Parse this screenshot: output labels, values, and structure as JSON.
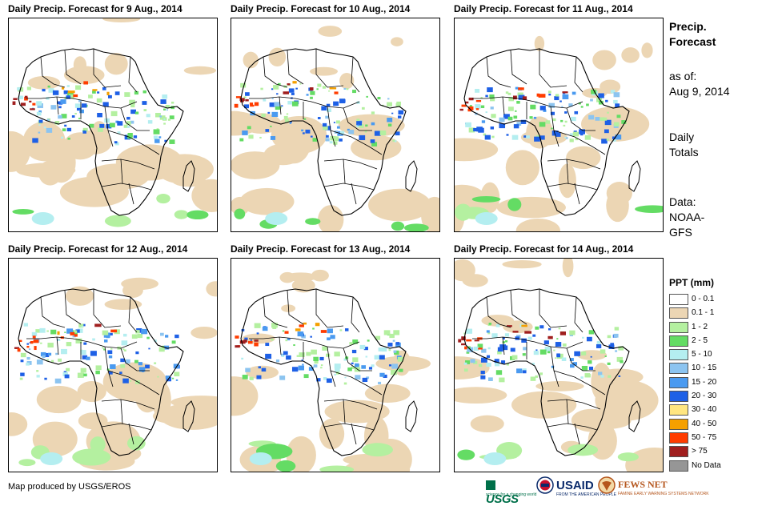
{
  "panels": [
    {
      "title": "Daily Precip. Forecast for 9 Aug., 2014"
    },
    {
      "title": "Daily Precip. Forecast for 10 Aug., 2014"
    },
    {
      "title": "Daily Precip. Forecast for 11 Aug., 2014"
    },
    {
      "title": "Daily Precip. Forecast for 12 Aug., 2014"
    },
    {
      "title": "Daily Precip. Forecast for 13 Aug., 2014"
    },
    {
      "title": "Daily Precip. Forecast for 14 Aug., 2014"
    }
  ],
  "side": {
    "heading_line1": "Precip.",
    "heading_line2": "Forecast",
    "asof_line1": "as of:",
    "asof_line2": "Aug 9, 2014",
    "totals_line1": "Daily",
    "totals_line2": "Totals",
    "data_line1": "Data:",
    "data_line2": "NOAA-",
    "data_line3": "GFS"
  },
  "legend": {
    "title": "PPT (mm)",
    "items": [
      {
        "label": "0 - 0.1",
        "color": "#ffffff"
      },
      {
        "label": "0.1 - 1",
        "color": "#ecd6b4"
      },
      {
        "label": "1 - 2",
        "color": "#b4f0a0"
      },
      {
        "label": "2 - 5",
        "color": "#64dc64"
      },
      {
        "label": "5 - 10",
        "color": "#b4eef0"
      },
      {
        "label": "10 - 15",
        "color": "#8cc4f0"
      },
      {
        "label": "15 - 20",
        "color": "#4a9af0"
      },
      {
        "label": "20 - 30",
        "color": "#1e60e6"
      },
      {
        "label": "30 - 40",
        "color": "#ffe680"
      },
      {
        "label": "40 - 50",
        "color": "#f5a000"
      },
      {
        "label": "50 - 75",
        "color": "#ff3c00"
      },
      {
        "label": "> 75",
        "color": "#a01e1e"
      },
      {
        "label": "No Data",
        "color": "#969696"
      }
    ]
  },
  "credit": "Map produced by USGS/EROS",
  "logos": {
    "usgs": "USGS",
    "usgs_tagline": "science for a changing world",
    "usaid": "USAID",
    "usaid_tagline": "FROM THE AMERICAN PEOPLE",
    "fews": "FEWS NET",
    "fews_tagline": "FAMINE EARLY WARNING SYSTEMS NETWORK"
  }
}
